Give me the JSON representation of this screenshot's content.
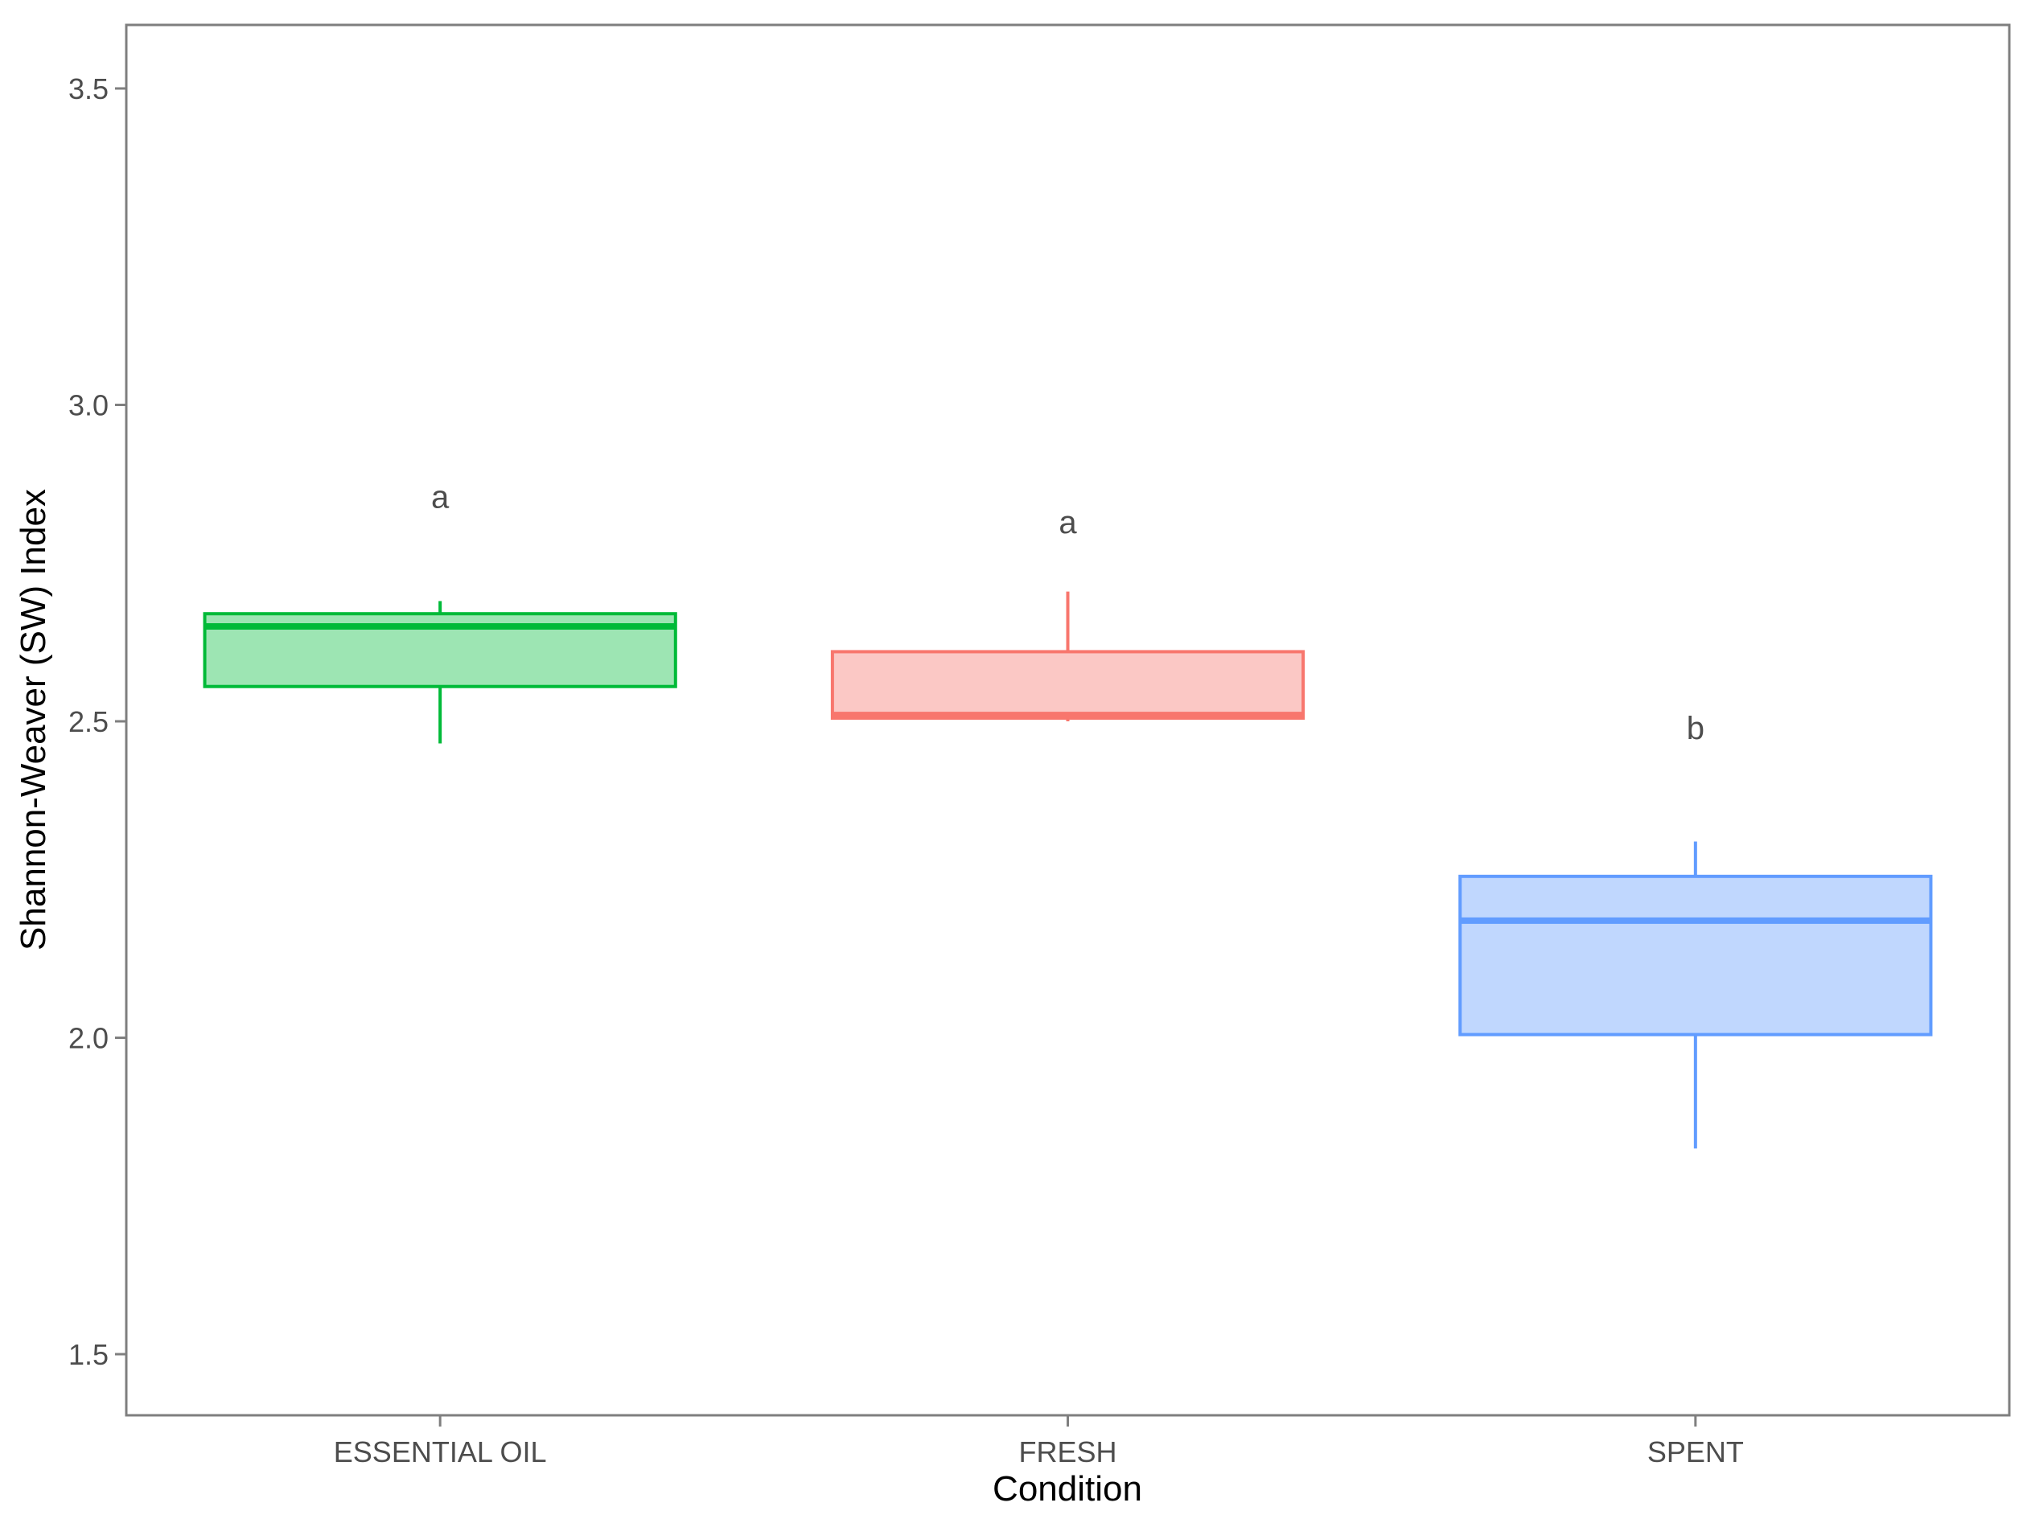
{
  "chart_data": {
    "type": "box",
    "title": "",
    "xlabel": "Condition",
    "ylabel": "Shannon-Weaver (SW) Index",
    "ylim": [
      1.4,
      3.6
    ],
    "yticks": [
      "1.5",
      "2.0",
      "2.5",
      "3.0",
      "3.5"
    ],
    "grid": false,
    "categories": [
      "ESSENTIAL OIL",
      "FRESH",
      "SPENT"
    ],
    "boxes": [
      {
        "category": "ESSENTIAL OIL",
        "min": 2.465,
        "q1": 2.555,
        "median": 2.65,
        "q3": 2.67,
        "max": 2.69,
        "color": "#00BA38",
        "fill": "#9de5b3",
        "label": "a",
        "label_y": 2.855
      },
      {
        "category": "FRESH",
        "min": 2.5,
        "q1": 2.505,
        "median": 2.51,
        "q3": 2.61,
        "max": 2.705,
        "color": "#F8766D",
        "fill": "#fbc8c5",
        "label": "a",
        "label_y": 2.815
      },
      {
        "category": "SPENT",
        "min": 1.825,
        "q1": 2.005,
        "median": 2.185,
        "q3": 2.255,
        "max": 2.31,
        "color": "#619CFF",
        "fill": "#c0d7fe",
        "label": "b",
        "label_y": 2.49
      }
    ]
  }
}
